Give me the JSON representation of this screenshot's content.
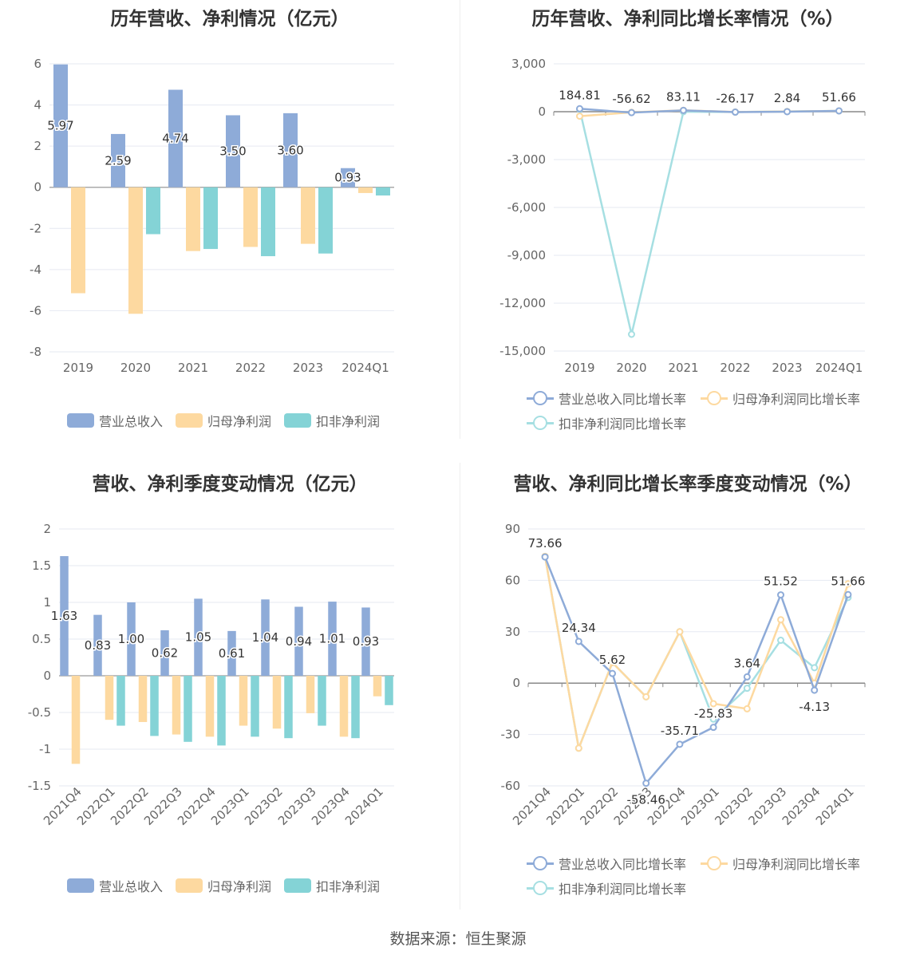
{
  "source": "数据来源：恒生聚源",
  "colors": {
    "revenue": "#8eabd8",
    "parent": "#fdd9a0",
    "nonrec": "#84d3d6",
    "rev_line": "#8eabd8",
    "parent_line": "#fdd9a0",
    "nonrec_line": "#a6dfe2",
    "grid": "#e6e9f2",
    "axis": "#999999",
    "label": "#666666"
  },
  "chart_data": [
    {
      "id": "annual-bar",
      "type": "bar",
      "title": "历年营收、净利情况（亿元）",
      "categories": [
        "2019",
        "2020",
        "2021",
        "2022",
        "2023",
        "2024Q1"
      ],
      "ylim": [
        -8,
        6
      ],
      "yticks": [
        "6",
        "4",
        "2",
        "0",
        "-2",
        "-4",
        "-6",
        "-8"
      ],
      "ytick_values": [
        6,
        4,
        2,
        0,
        -2,
        -4,
        -6,
        -8
      ],
      "series": [
        {
          "name": "营业总收入",
          "values": [
            5.97,
            2.59,
            4.74,
            3.5,
            3.6,
            0.93
          ],
          "labels": [
            "5.97",
            "2.59",
            "4.74",
            "3.50",
            "3.60",
            "0.93"
          ]
        },
        {
          "name": "归母净利润",
          "values": [
            -5.15,
            -6.15,
            -3.1,
            -2.9,
            -2.75,
            -0.28
          ]
        },
        {
          "name": "扣非净利润",
          "values": [
            0,
            -2.28,
            -3.0,
            -3.35,
            -3.22,
            -0.4
          ]
        }
      ],
      "grid": true,
      "legend": "bottom"
    },
    {
      "id": "annual-growth",
      "type": "line",
      "title": "历年营收、净利同比增长率情况（%）",
      "categories": [
        "2019",
        "2020",
        "2021",
        "2022",
        "2023",
        "2024Q1"
      ],
      "ylim": [
        -15000,
        3000
      ],
      "yticks": [
        "3,000",
        "0",
        "-3,000",
        "-6,000",
        "-9,000",
        "-12,000",
        "-15,000"
      ],
      "ytick_values": [
        3000,
        0,
        -3000,
        -6000,
        -9000,
        -12000,
        -15000
      ],
      "series": [
        {
          "name": "营业总收入同比增长率",
          "values": [
            184.81,
            -56.62,
            83.11,
            -26.17,
            2.84,
            51.66
          ],
          "labels": [
            "184.81",
            "-56.62",
            "83.11",
            "-26.17",
            "2.84",
            "51.66"
          ]
        },
        {
          "name": "归母净利润同比增长率",
          "values": [
            -280,
            -40,
            90,
            -20,
            10,
            50
          ]
        },
        {
          "name": "扣非净利润同比增长率",
          "values": [
            150,
            -13950,
            0,
            -20,
            10,
            50
          ]
        }
      ],
      "grid": true,
      "legend": "bottom"
    },
    {
      "id": "quarterly-bar",
      "type": "bar",
      "title": "营收、净利季度变动情况（亿元）",
      "categories": [
        "2021Q4",
        "2022Q1",
        "2022Q2",
        "2022Q3",
        "2022Q4",
        "2023Q1",
        "2023Q2",
        "2023Q3",
        "2023Q4",
        "2024Q1"
      ],
      "ylim": [
        -1.5,
        2
      ],
      "yticks": [
        "2",
        "1.5",
        "1",
        "0.5",
        "0",
        "-0.5",
        "-1",
        "-1.5"
      ],
      "ytick_values": [
        2,
        1.5,
        1,
        0.5,
        0,
        -0.5,
        -1,
        -1.5
      ],
      "series": [
        {
          "name": "营业总收入",
          "values": [
            1.63,
            0.83,
            1.0,
            0.62,
            1.05,
            0.61,
            1.04,
            0.94,
            1.01,
            0.93
          ],
          "labels": [
            "1.63",
            "0.83",
            "1.00",
            "0.62",
            "1.05",
            "0.61",
            "1.04",
            "0.94",
            "1.01",
            "0.93"
          ]
        },
        {
          "name": "归母净利润",
          "values": [
            -1.2,
            -0.6,
            -0.63,
            -0.8,
            -0.83,
            -0.68,
            -0.72,
            -0.51,
            -0.83,
            -0.28
          ]
        },
        {
          "name": "扣非净利润",
          "values": [
            0,
            -0.68,
            -0.82,
            -0.9,
            -0.95,
            -0.83,
            -0.85,
            -0.68,
            -0.85,
            -0.4
          ]
        }
      ],
      "grid": true,
      "legend": "bottom"
    },
    {
      "id": "quarterly-growth",
      "type": "line",
      "title": "营收、净利同比增长率季度变动情况（%）",
      "categories": [
        "2021Q4",
        "2022Q1",
        "2022Q2",
        "2022Q3",
        "2022Q4",
        "2023Q1",
        "2023Q2",
        "2023Q3",
        "2023Q4",
        "2024Q1"
      ],
      "ylim": [
        -60,
        90
      ],
      "yticks": [
        "90",
        "60",
        "30",
        "0",
        "-30",
        "-60"
      ],
      "ytick_values": [
        90,
        60,
        30,
        0,
        -30,
        -60
      ],
      "series": [
        {
          "name": "营业总收入同比增长率",
          "values": [
            73.66,
            24.34,
            5.62,
            -58.46,
            -35.71,
            -25.83,
            3.64,
            51.52,
            -4.13,
            51.66
          ],
          "labels": [
            "73.66",
            "24.34",
            "5.62",
            "-58.46",
            "-35.71",
            "-25.83",
            "3.64",
            "51.52",
            "-4.13",
            "51.66"
          ]
        },
        {
          "name": "归母净利润同比增长率",
          "values": [
            74,
            -38,
            12,
            -8,
            30,
            -12,
            -15,
            37,
            0,
            58
          ]
        },
        {
          "name": "扣非净利润同比增长率",
          "values": [
            74,
            -38,
            12,
            -8,
            30,
            -21,
            -3,
            25,
            9,
            50
          ]
        }
      ],
      "grid": true,
      "legend": "bottom"
    }
  ]
}
